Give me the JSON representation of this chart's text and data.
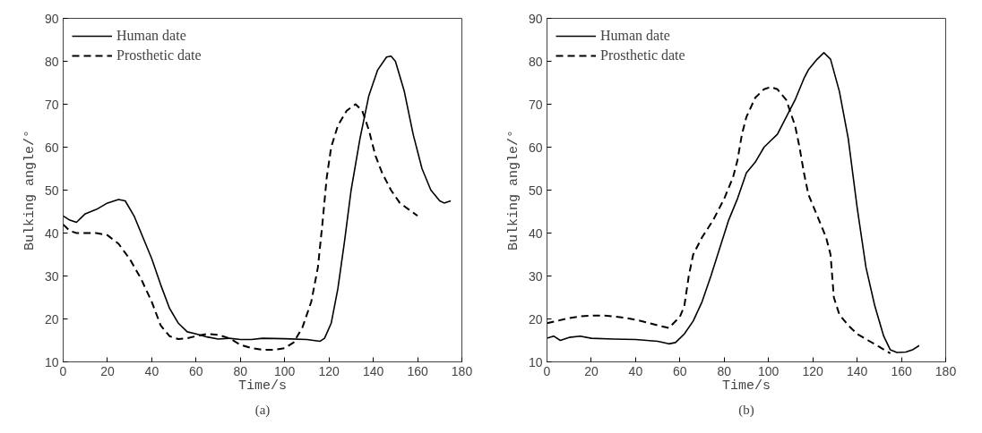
{
  "chart_data": [
    {
      "type": "line",
      "title": "(a)",
      "xlabel": "Time/s",
      "ylabel": "Bulking angle/°",
      "xlim": [
        0,
        180
      ],
      "ylim": [
        10,
        90
      ],
      "xticks": [
        0,
        20,
        40,
        60,
        80,
        100,
        120,
        140,
        160,
        180
      ],
      "yticks": [
        10,
        20,
        30,
        40,
        50,
        60,
        70,
        80,
        90
      ],
      "grid": false,
      "legend": "top left",
      "marker": "none",
      "series": [
        {
          "name": "Human date",
          "color": "#000000",
          "line_style": "solid",
          "x": [
            0,
            3,
            6,
            10,
            15,
            20,
            25,
            28,
            32,
            36,
            40,
            44,
            48,
            52,
            56,
            60,
            65,
            70,
            75,
            80,
            85,
            90,
            100,
            110,
            116,
            118,
            121,
            124,
            127,
            130,
            134,
            138,
            142,
            146,
            148,
            150,
            154,
            158,
            162,
            166,
            170,
            172,
            175
          ],
          "values": [
            44,
            43,
            42.5,
            44.5,
            45.5,
            47,
            47.8,
            47.5,
            44,
            39,
            34,
            28,
            22.5,
            19,
            17,
            16.5,
            15.8,
            15.3,
            15.5,
            15.2,
            15.2,
            15.5,
            15.4,
            15.2,
            14.8,
            15.5,
            19,
            27,
            38,
            50,
            62,
            72,
            78,
            81,
            81.2,
            80,
            73,
            63,
            55,
            50,
            47.5,
            47,
            47.5
          ]
        },
        {
          "name": "Prosthetic date",
          "color": "#000000",
          "line_style": "dashed",
          "x": [
            0,
            3,
            6,
            10,
            15,
            20,
            25,
            30,
            35,
            40,
            44,
            48,
            52,
            56,
            60,
            65,
            70,
            75,
            80,
            85,
            90,
            95,
            100,
            104,
            108,
            112,
            115,
            117,
            119,
            121,
            124,
            128,
            132,
            135,
            138,
            141,
            144,
            148,
            152,
            156,
            160
          ],
          "values": [
            42,
            40.5,
            40,
            40,
            40,
            39.5,
            37.5,
            34,
            29.5,
            24,
            18.5,
            16,
            15.3,
            15.5,
            16,
            16.5,
            16.3,
            15.5,
            14,
            13.2,
            12.8,
            12.8,
            13.2,
            14.5,
            18,
            24,
            32,
            42,
            53,
            60,
            65,
            68.5,
            70,
            68.5,
            64,
            58,
            54,
            50,
            47,
            45.5,
            44
          ]
        }
      ]
    },
    {
      "type": "line",
      "title": "(b)",
      "xlabel": "Time/s",
      "ylabel": "Bulking angle/°",
      "xlim": [
        0,
        180
      ],
      "ylim": [
        10,
        90
      ],
      "xticks": [
        0,
        20,
        40,
        60,
        80,
        100,
        120,
        140,
        160,
        180
      ],
      "yticks": [
        10,
        20,
        30,
        40,
        50,
        60,
        70,
        80,
        90
      ],
      "grid": false,
      "legend": "top left",
      "marker": "none",
      "series": [
        {
          "name": "Human date",
          "color": "#000000",
          "line_style": "solid",
          "x": [
            0,
            3,
            6,
            10,
            15,
            20,
            30,
            40,
            50,
            55,
            58,
            62,
            66,
            70,
            74,
            78,
            82,
            86,
            90,
            94,
            98,
            101,
            104,
            108,
            112,
            116,
            118,
            122,
            125,
            128,
            132,
            136,
            140,
            144,
            148,
            152,
            155,
            158,
            162,
            165,
            168
          ],
          "values": [
            15.5,
            16,
            15,
            15.7,
            16,
            15.5,
            15.3,
            15.2,
            14.8,
            14.2,
            14.5,
            16.5,
            19.5,
            24,
            30,
            36.5,
            43,
            48,
            54,
            56.5,
            60,
            61.5,
            63,
            67,
            71,
            76,
            78,
            80.5,
            82,
            80.5,
            73,
            62,
            46,
            32,
            23,
            16,
            12.8,
            12.2,
            12.3,
            12.8,
            13.8
          ]
        },
        {
          "name": "Prosthetic date",
          "color": "#000000",
          "line_style": "dashed",
          "x": [
            0,
            5,
            10,
            15,
            20,
            25,
            30,
            35,
            40,
            45,
            50,
            55,
            60,
            62,
            64,
            66,
            70,
            75,
            80,
            84,
            86,
            88,
            90,
            94,
            98,
            101,
            104,
            108,
            112,
            114,
            116,
            118,
            122,
            126,
            128,
            129.5,
            132,
            136,
            140,
            145,
            150,
            155
          ],
          "values": [
            19,
            19.6,
            20.2,
            20.6,
            20.8,
            20.8,
            20.6,
            20.3,
            19.8,
            19.2,
            18.5,
            17.9,
            20.5,
            23,
            30,
            35,
            39,
            43,
            48,
            53,
            57,
            63,
            67,
            71.5,
            73.5,
            74,
            73.5,
            71,
            65,
            60,
            54,
            49,
            44,
            39,
            35,
            25,
            21,
            18.5,
            16.5,
            15,
            13.5,
            12
          ]
        }
      ]
    }
  ]
}
